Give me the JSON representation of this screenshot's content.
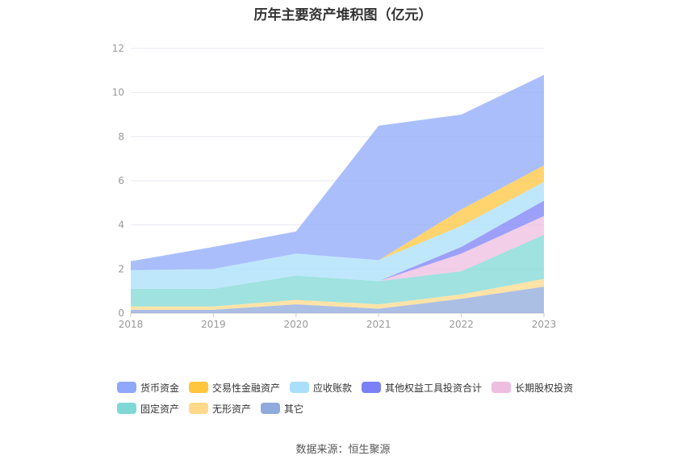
{
  "chart_data": {
    "type": "area",
    "stacked": true,
    "title": "历年主要资产堆积图（亿元）",
    "x": [
      "2018",
      "2019",
      "2020",
      "2021",
      "2022",
      "2023"
    ],
    "ylim": [
      0,
      12
    ],
    "yticks": [
      0,
      2,
      4,
      6,
      8,
      10,
      12
    ],
    "grid": true,
    "legend_position": "bottom",
    "series": [
      {
        "name": "其它",
        "color": "#8faadc",
        "values": [
          0.15,
          0.15,
          0.4,
          0.2,
          0.65,
          1.2
        ]
      },
      {
        "name": "无形资产",
        "color": "#ffd98a",
        "values": [
          0.15,
          0.15,
          0.2,
          0.2,
          0.2,
          0.35
        ]
      },
      {
        "name": "固定资产",
        "color": "#7fd8d6",
        "values": [
          0.8,
          0.8,
          1.1,
          1.05,
          1.05,
          2.0
        ]
      },
      {
        "name": "长期股权投资",
        "color": "#eebde0",
        "values": [
          0,
          0,
          0,
          0,
          0.8,
          0.85
        ]
      },
      {
        "name": "其他权益工具投资合计",
        "color": "#7b80f5",
        "values": [
          0,
          0,
          0,
          0,
          0.3,
          0.7
        ]
      },
      {
        "name": "应收账款",
        "color": "#a9dffb",
        "values": [
          0.85,
          0.9,
          1.0,
          0.95,
          0.95,
          0.85
        ]
      },
      {
        "name": "交易性金融资产",
        "color": "#ffc53d",
        "values": [
          0,
          0,
          0,
          0,
          0.75,
          0.75
        ]
      },
      {
        "name": "货币资金",
        "color": "#8fa8fb",
        "values": [
          0.4,
          1.0,
          1.0,
          6.1,
          4.3,
          4.1
        ]
      }
    ],
    "legend_order": [
      "货币资金",
      "交易性金融资产",
      "应收账款",
      "其他权益工具投资合计",
      "长期股权投资",
      "固定资产",
      "无形资产",
      "其它"
    ]
  },
  "footer": {
    "source": "数据来源：恒生聚源"
  }
}
